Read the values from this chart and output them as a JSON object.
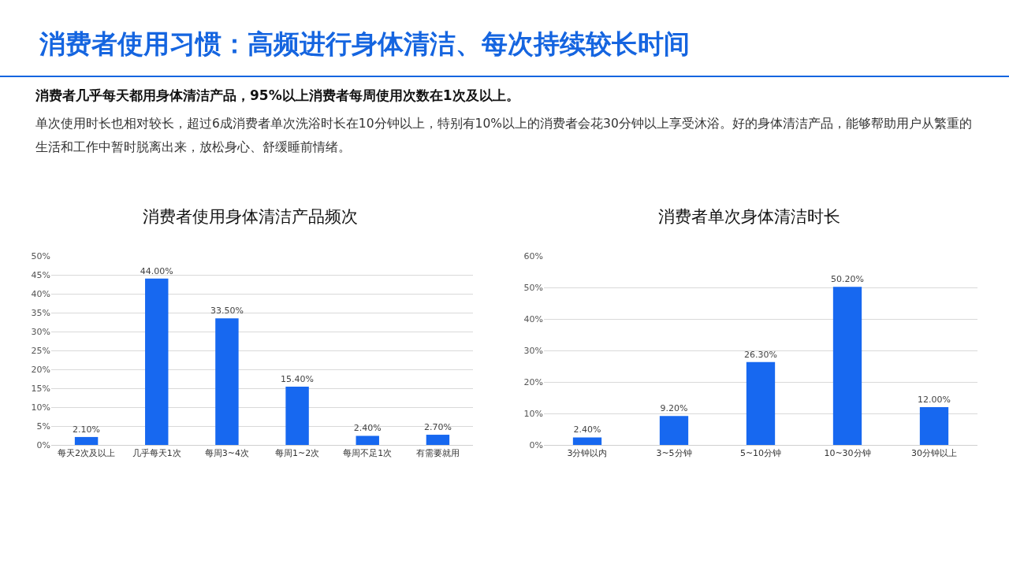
{
  "chart_data": [
    {
      "type": "other",
      "title": "消费者使用习惯：高频进行身体清洁、每次持续较长时间",
      "subtitle": "消费者几乎每天都用身体清洁产品，95%以上消费者每周使用次数在1次及以上。",
      "annotations": [
        "单次使用时长也相对较长，超过6成消费者单次洗浴时长在10分钟以上，特别有10%以上的消费者会花30分钟以上享受沐浴。好的身体清洁产品，能够帮助用户从繁重的生活和工作中暂时脱离出来，放松身心、舒缓睡前情绪。"
      ]
    },
    {
      "type": "bar",
      "title": "消费者使用身体清洁产品频次",
      "categories": [
        "每天2次及以上",
        "几乎每天1次",
        "每周3~4次",
        "每周1~2次",
        "每周不足1次",
        "有需要就用"
      ],
      "values": [
        2.1,
        44,
        33.5,
        15.4,
        2.4,
        2.7
      ],
      "value_labels": [
        "2.10%",
        "44.00%",
        "33.50%",
        "15.40%",
        "2.40%",
        "2.70%"
      ],
      "color": "#1768f0",
      "ylim": [
        0,
        50
      ],
      "yticks": [
        {
          "value": 0,
          "label": "0%"
        },
        {
          "value": 5,
          "label": "5%"
        },
        {
          "value": 10,
          "label": "10%"
        },
        {
          "value": 15,
          "label": "15%"
        },
        {
          "value": 20,
          "label": "20%"
        },
        {
          "value": 25,
          "label": "25%"
        },
        {
          "value": 30,
          "label": "30%"
        },
        {
          "value": 35,
          "label": "35%"
        },
        {
          "value": 40,
          "label": "40%"
        },
        {
          "value": 45,
          "label": "45%"
        },
        {
          "value": 50,
          "label": "50%"
        }
      ],
      "grid": "y"
    },
    {
      "type": "bar",
      "title": "消费者单次身体清洁时长",
      "categories": [
        "3分钟以内",
        "3~5分钟",
        "5~10分钟",
        "10~30分钟",
        "30分钟以上"
      ],
      "values": [
        2.4,
        9.2,
        26.3,
        50.2,
        12
      ],
      "value_labels": [
        "2.40%",
        "9.20%",
        "26.30%",
        "50.20%",
        "12.00%"
      ],
      "color": "#1768f0",
      "ylim": [
        0,
        60
      ],
      "yticks": [
        {
          "value": 0,
          "label": "0%"
        },
        {
          "value": 10,
          "label": "10%"
        },
        {
          "value": 20,
          "label": "20%"
        },
        {
          "value": 30,
          "label": "30%"
        },
        {
          "value": 40,
          "label": "40%"
        },
        {
          "value": 50,
          "label": "50%"
        },
        {
          "value": 60,
          "label": "60%"
        }
      ],
      "grid": "y"
    }
  ]
}
